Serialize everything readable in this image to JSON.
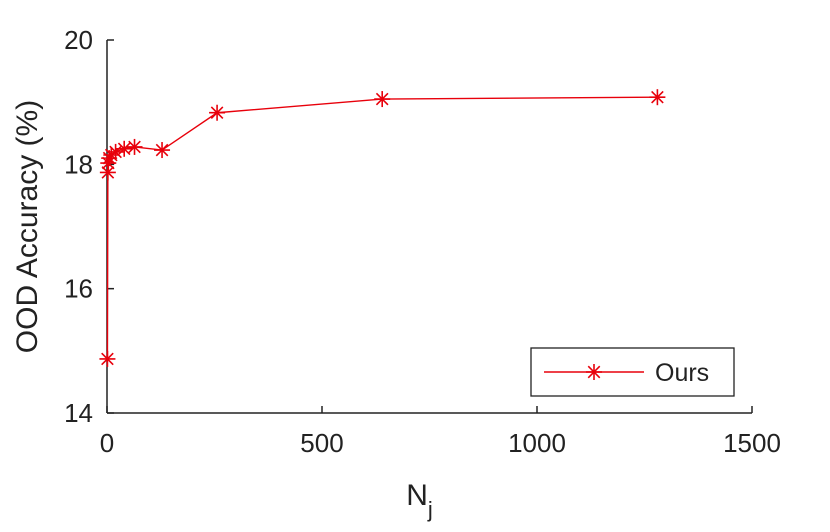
{
  "chart_data": {
    "type": "line",
    "title": "",
    "xlabel": "N",
    "xlabel_subscript": "j",
    "ylabel": "OOD Accuracy (%)",
    "xlim": [
      0,
      1500
    ],
    "ylim": [
      14,
      20
    ],
    "xticks": [
      0,
      500,
      1000,
      1500
    ],
    "yticks": [
      14,
      16,
      18,
      20
    ],
    "grid": false,
    "legend_position": "bottom-right",
    "series": [
      {
        "name": "Ours",
        "color": "#e8000b",
        "marker": "asterisk",
        "x": [
          1,
          2,
          3,
          5,
          10,
          20,
          40,
          64,
          128,
          256,
          640,
          1280
        ],
        "y": [
          14.87,
          17.87,
          18.02,
          18.1,
          18.15,
          18.2,
          18.25,
          18.28,
          18.23,
          18.83,
          19.05,
          19.08
        ]
      }
    ]
  }
}
